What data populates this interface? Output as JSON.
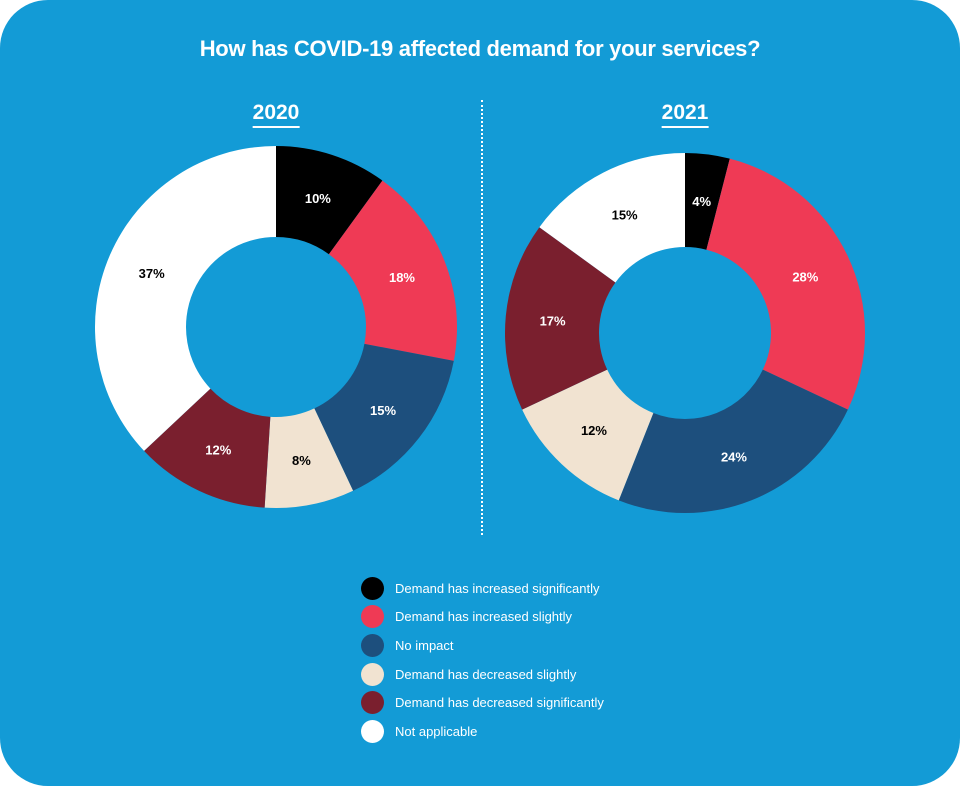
{
  "chart_data": {
    "type": "pie",
    "title": "How has COVID-19 affected demand for your services?",
    "categories": [
      "Demand has increased significantly",
      "Demand has increased slightly",
      "No impact",
      "Demand has decreased slightly",
      "Demand has decreased significantly",
      "Not applicable"
    ],
    "colors": [
      "#000000",
      "#ef3a55",
      "#1d4f7d",
      "#f1e3d1",
      "#7a1f2e",
      "#ffffff"
    ],
    "label_colors": [
      "#ffffff",
      "#ffffff",
      "#ffffff",
      "#000000",
      "#ffffff",
      "#000000"
    ],
    "charts": [
      {
        "year": "2020",
        "values": [
          10,
          18,
          15,
          8,
          12,
          37
        ]
      },
      {
        "year": "2021",
        "values": [
          4,
          28,
          24,
          12,
          17,
          15
        ]
      }
    ],
    "donut": true,
    "legend_position": "bottom-center"
  },
  "background_color": "#139bd6"
}
